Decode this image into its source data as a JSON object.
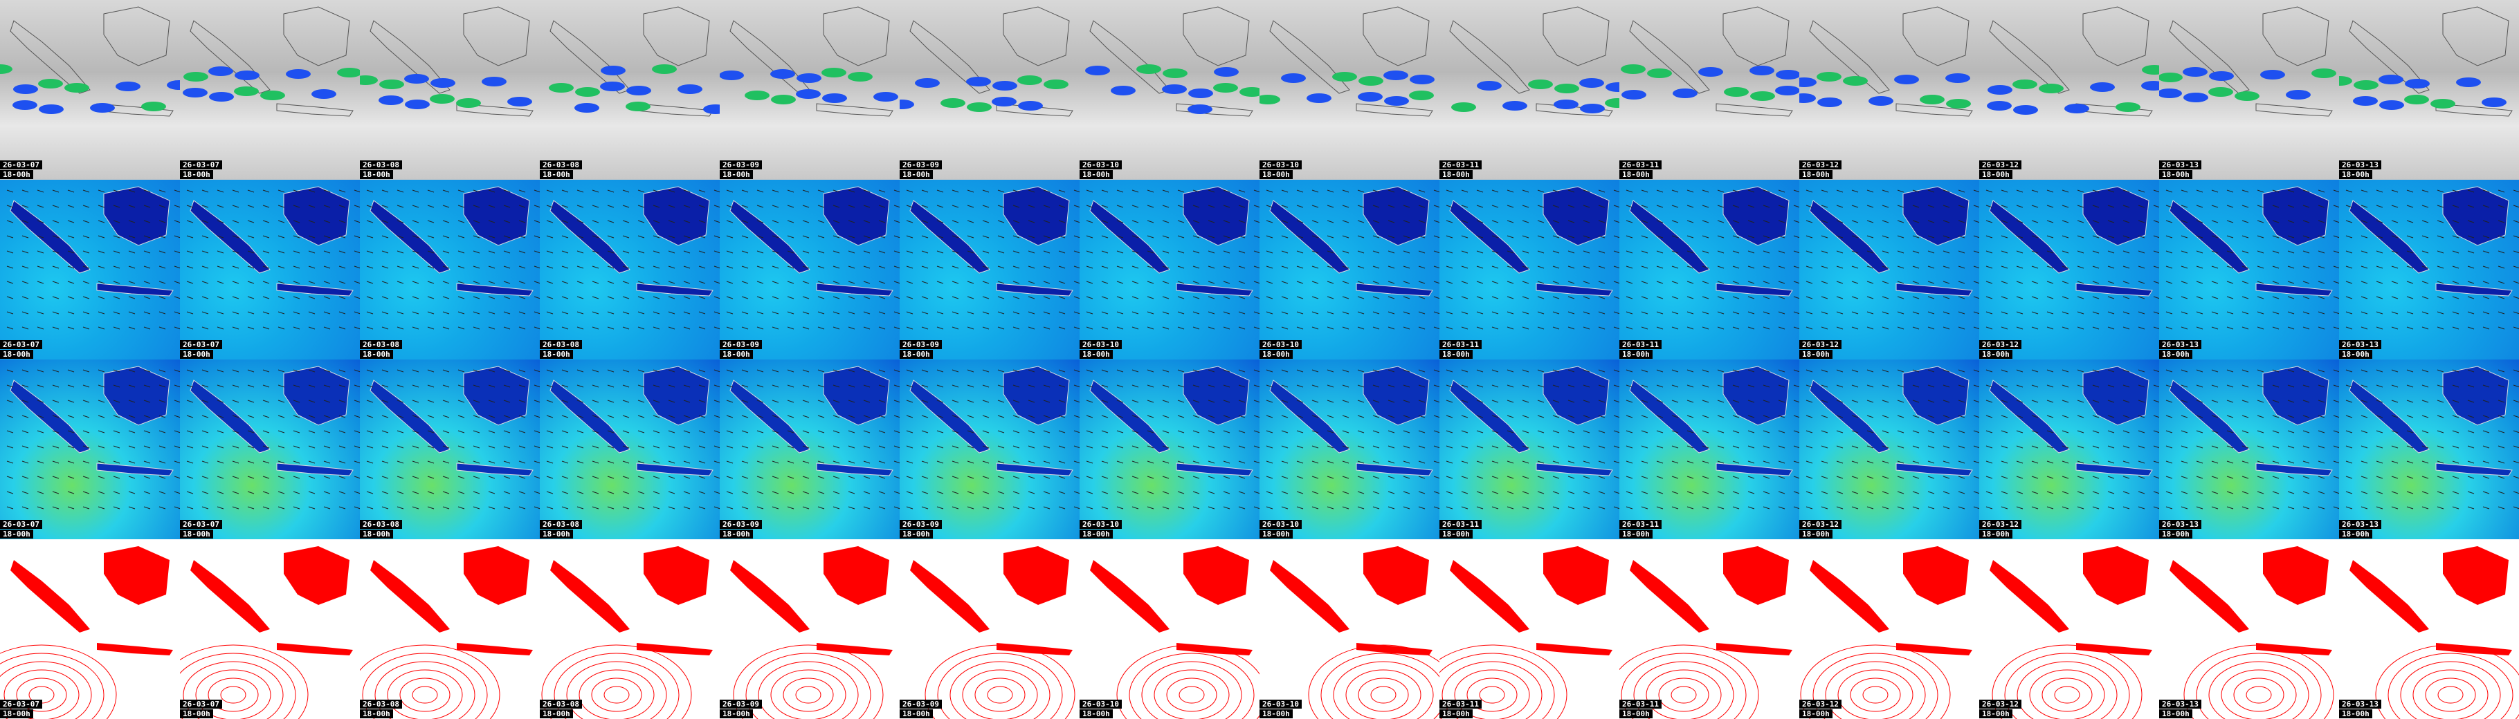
{
  "rows": [
    {
      "tiles": [
        {
          "date": "26-03-07",
          "time": "18-00h"
        },
        {
          "date": "26-03-07",
          "time": "18-00h"
        },
        {
          "date": "26-03-08",
          "time": "18-00h"
        },
        {
          "date": "26-03-08",
          "time": "18-00h"
        },
        {
          "date": "26-03-09",
          "time": "18-00h"
        },
        {
          "date": "26-03-09",
          "time": "18-00h"
        },
        {
          "date": "26-03-10",
          "time": "18-00h"
        },
        {
          "date": "26-03-10",
          "time": "18-00h"
        },
        {
          "date": "26-03-11",
          "time": "18-00h"
        },
        {
          "date": "26-03-11",
          "time": "18-00h"
        },
        {
          "date": "26-03-12",
          "time": "18-00h"
        },
        {
          "date": "26-03-12",
          "time": "18-00h"
        },
        {
          "date": "26-03-13",
          "time": "18-00h"
        },
        {
          "date": "26-03-13",
          "time": "18-00h"
        }
      ]
    },
    {
      "tiles": [
        {
          "date": "26-03-07",
          "time": "18-00h"
        },
        {
          "date": "26-03-07",
          "time": "18-00h"
        },
        {
          "date": "26-03-08",
          "time": "18-00h"
        },
        {
          "date": "26-03-08",
          "time": "18-00h"
        },
        {
          "date": "26-03-09",
          "time": "18-00h"
        },
        {
          "date": "26-03-09",
          "time": "18-00h"
        },
        {
          "date": "26-03-10",
          "time": "18-00h"
        },
        {
          "date": "26-03-10",
          "time": "18-00h"
        },
        {
          "date": "26-03-11",
          "time": "18-00h"
        },
        {
          "date": "26-03-11",
          "time": "18-00h"
        },
        {
          "date": "26-03-12",
          "time": "18-00h"
        },
        {
          "date": "26-03-12",
          "time": "18-00h"
        },
        {
          "date": "26-03-13",
          "time": "18-00h"
        },
        {
          "date": "26-03-13",
          "time": "18-00h"
        }
      ]
    },
    {
      "tiles": [
        {
          "date": "26-03-07",
          "time": "18-00h"
        },
        {
          "date": "26-03-07",
          "time": "18-00h"
        },
        {
          "date": "26-03-08",
          "time": "18-00h"
        },
        {
          "date": "26-03-08",
          "time": "18-00h"
        },
        {
          "date": "26-03-09",
          "time": "18-00h"
        },
        {
          "date": "26-03-09",
          "time": "18-00h"
        },
        {
          "date": "26-03-10",
          "time": "18-00h"
        },
        {
          "date": "26-03-10",
          "time": "18-00h"
        },
        {
          "date": "26-03-11",
          "time": "18-00h"
        },
        {
          "date": "26-03-11",
          "time": "18-00h"
        },
        {
          "date": "26-03-12",
          "time": "18-00h"
        },
        {
          "date": "26-03-12",
          "time": "18-00h"
        },
        {
          "date": "26-03-13",
          "time": "18-00h"
        },
        {
          "date": "26-03-13",
          "time": "18-00h"
        }
      ]
    },
    {
      "tiles": [
        {
          "date": "26-03-07",
          "time": "18-00h"
        },
        {
          "date": "26-03-07",
          "time": "18-00h"
        },
        {
          "date": "26-03-08",
          "time": "18-00h"
        },
        {
          "date": "26-03-08",
          "time": "18-00h"
        },
        {
          "date": "26-03-09",
          "time": "18-00h"
        },
        {
          "date": "26-03-09",
          "time": "18-00h"
        },
        {
          "date": "26-03-10",
          "time": "18-00h"
        },
        {
          "date": "26-03-10",
          "time": "18-00h"
        },
        {
          "date": "26-03-11",
          "time": "18-00h"
        },
        {
          "date": "26-03-11",
          "time": "18-00h"
        },
        {
          "date": "26-03-12",
          "time": "18-00h"
        },
        {
          "date": "26-03-12",
          "time": "18-00h"
        },
        {
          "date": "26-03-13",
          "time": "18-00h"
        },
        {
          "date": "26-03-13",
          "time": "18-00h"
        }
      ]
    }
  ]
}
